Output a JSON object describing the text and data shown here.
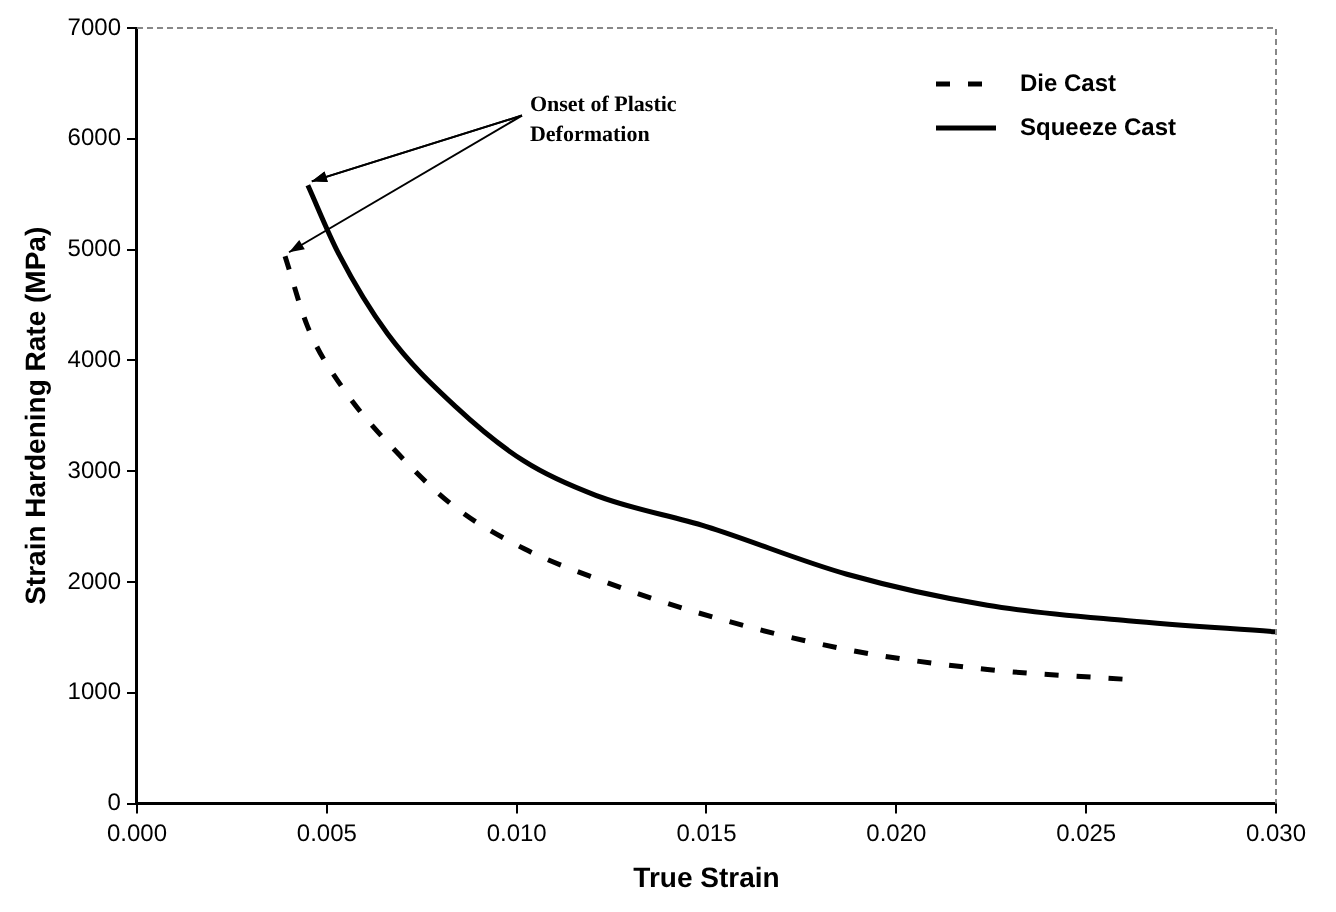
{
  "chart_data": {
    "type": "line",
    "xlabel": "True Strain",
    "ylabel": "Strain Hardening Rate (MPa)",
    "xlim": [
      0,
      0.03
    ],
    "xticks": [
      {
        "value": 0,
        "label": "0.000"
      },
      {
        "value": 0.005,
        "label": "0.005"
      },
      {
        "value": 0.01,
        "label": "0.010"
      },
      {
        "value": 0.015,
        "label": "0.015"
      },
      {
        "value": 0.02,
        "label": "0.020"
      },
      {
        "value": 0.025,
        "label": "0.025"
      },
      {
        "value": 0.03,
        "label": "0.030"
      }
    ],
    "ylim": [
      0,
      7000
    ],
    "yticks": [
      0,
      1000,
      2000,
      3000,
      4000,
      5000,
      6000,
      7000
    ],
    "grid": false,
    "legend": "top right",
    "marker": "none",
    "annotations": [
      {
        "text": "Onset of Plastic Deformation",
        "x": 0.0045,
        "y": 5580
      }
    ],
    "series": [
      {
        "name": "Die Cast",
        "color": "#000000",
        "line_style": "dashed",
        "x": [
          0.0039,
          0.0045,
          0.0054,
          0.0069,
          0.0084,
          0.0102,
          0.0121,
          0.0147,
          0.0187,
          0.0224,
          0.0261
        ],
        "values": [
          4940,
          4300,
          3760,
          3150,
          2670,
          2300,
          2030,
          1730,
          1390,
          1210,
          1120
        ]
      },
      {
        "name": "Squeeze Cast",
        "color": "#000000",
        "line_style": "solid",
        "x": [
          0.0045,
          0.0053,
          0.0066,
          0.0084,
          0.0102,
          0.0121,
          0.015,
          0.0187,
          0.0224,
          0.0261,
          0.03
        ],
        "values": [
          5580,
          4970,
          4240,
          3580,
          3090,
          2780,
          2500,
          2070,
          1790,
          1650,
          1550
        ]
      }
    ]
  }
}
